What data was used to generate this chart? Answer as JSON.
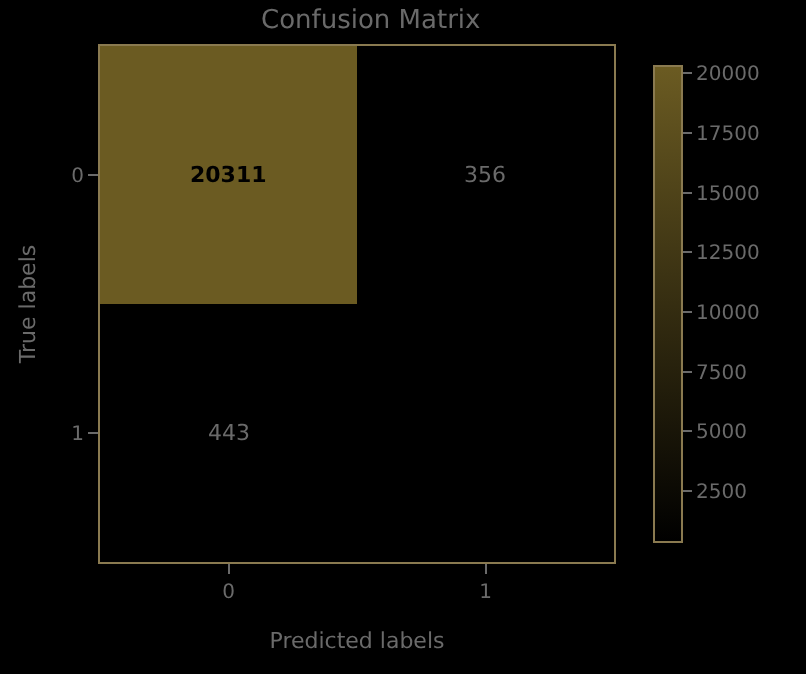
{
  "chart_data": {
    "type": "heatmap",
    "title": "Confusion Matrix",
    "xlabel": "Predicted labels",
    "ylabel": "True labels",
    "categories": [
      "0",
      "1"
    ],
    "y_categories": [
      "0",
      "1"
    ],
    "cells": [
      [
        20311,
        356
      ],
      [
        443,
        null
      ]
    ],
    "data_labels": true,
    "clim": [
      356,
      20311
    ],
    "cticks": [
      2500,
      5000,
      7500,
      10000,
      12500,
      15000,
      17500,
      20000
    ]
  }
}
